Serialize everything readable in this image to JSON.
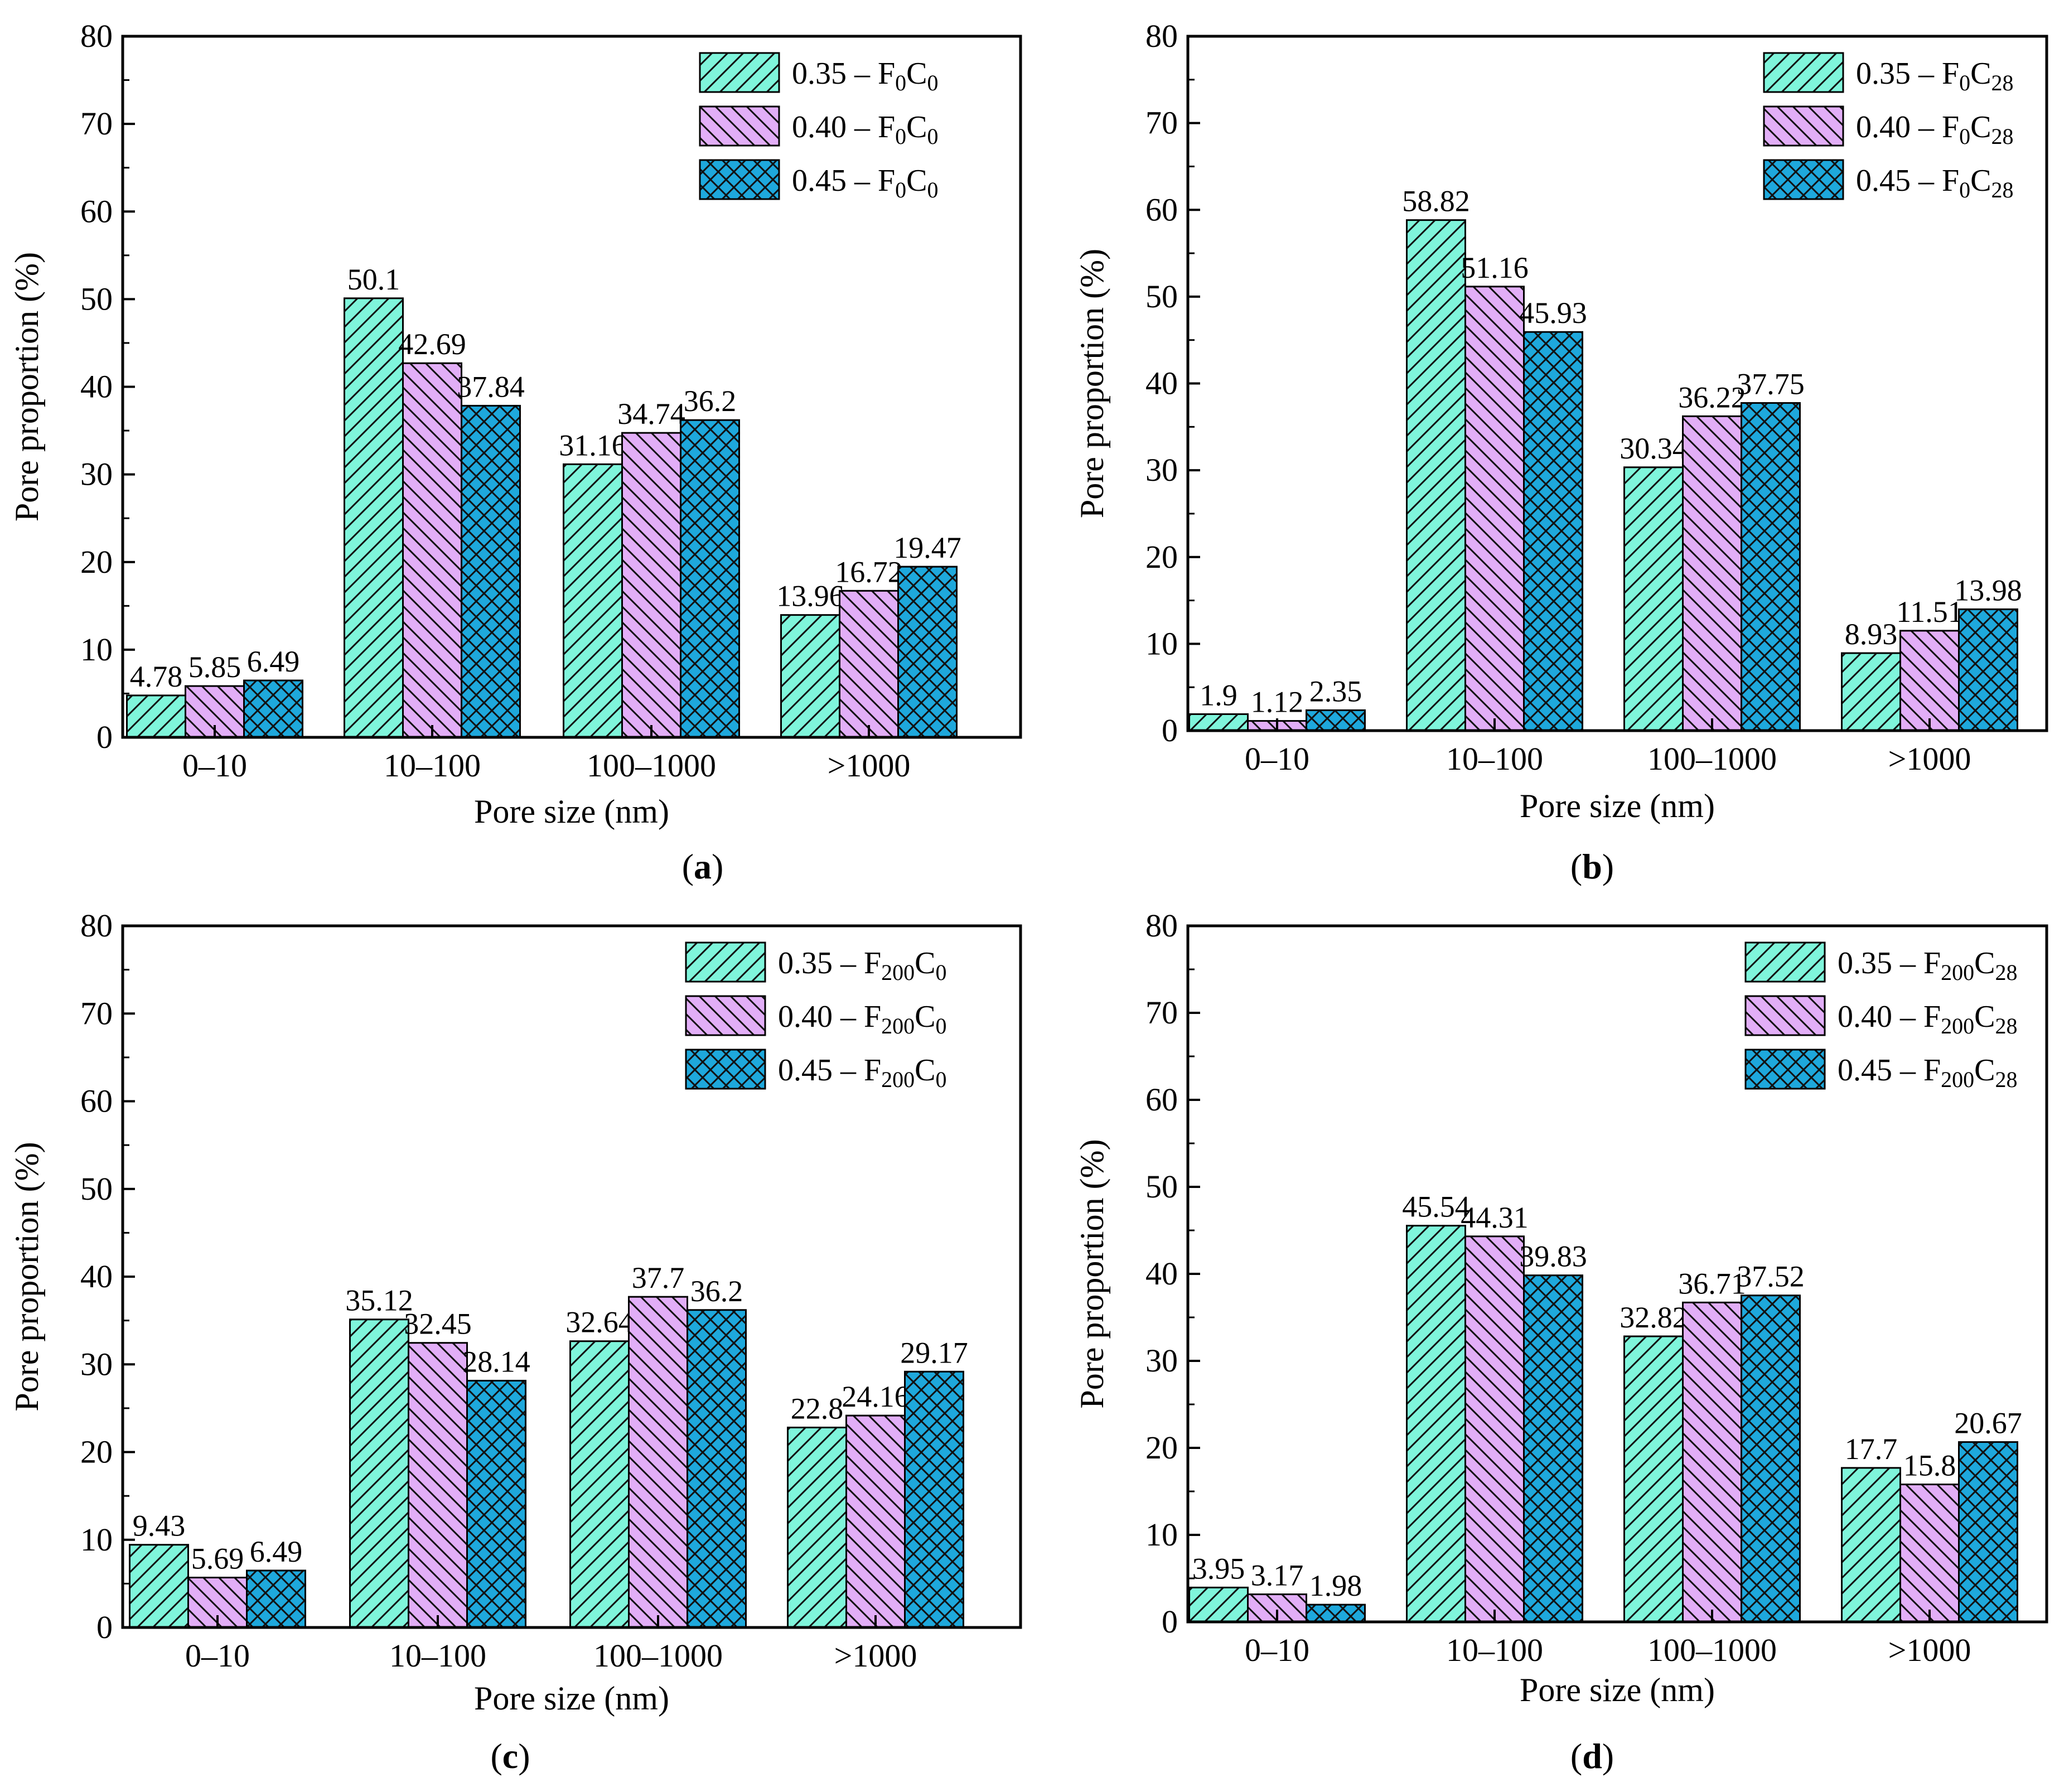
{
  "figure": {
    "colors": {
      "0.35": "#7ff5db",
      "0.40": "#e2aef7",
      "0.45": "#1ea8dc"
    },
    "patterns": {
      "0.35": "hatch-forward-diagonal",
      "0.40": "hatch-backward-diagonal",
      "0.45": "hatch-crosshatch"
    }
  },
  "chart_data": [
    {
      "panel": "a",
      "panel_label": "(a)",
      "type": "bar",
      "xlabel": "Pore size (nm)",
      "ylabel": "Pore proportion (%)",
      "ylim": [
        0,
        80
      ],
      "yticks": [
        0,
        10,
        20,
        30,
        40,
        50,
        60,
        70,
        80
      ],
      "legend_position": "top-right",
      "categories": [
        "0–10",
        "10–100",
        "100–1000",
        ">1000"
      ],
      "series": [
        {
          "key": "0.35",
          "name": "0.35 – F0C0",
          "legend_prefix": "0.35 – F",
          "legend_sub1": "0",
          "legend_mid": "C",
          "legend_sub2": "0",
          "values": [
            4.78,
            50.1,
            31.16,
            13.96
          ]
        },
        {
          "key": "0.40",
          "name": "0.40 – F0C0",
          "legend_prefix": "0.40 – F",
          "legend_sub1": "0",
          "legend_mid": "C",
          "legend_sub2": "0",
          "values": [
            5.85,
            42.69,
            34.74,
            16.72
          ]
        },
        {
          "key": "0.45",
          "name": "0.45 – F0C0",
          "legend_prefix": "0.45 – F",
          "legend_sub1": "0",
          "legend_mid": "C",
          "legend_sub2": "0",
          "values": [
            6.49,
            37.84,
            36.2,
            19.47
          ]
        }
      ]
    },
    {
      "panel": "b",
      "panel_label": "(b)",
      "type": "bar",
      "xlabel": "Pore size (nm)",
      "ylabel": "Pore proportion (%)",
      "ylim": [
        0,
        80
      ],
      "yticks": [
        0,
        10,
        20,
        30,
        40,
        50,
        60,
        70,
        80
      ],
      "legend_position": "top-right",
      "categories": [
        "0–10",
        "10–100",
        "100–1000",
        ">1000"
      ],
      "series": [
        {
          "key": "0.35",
          "name": "0.35 – F0C28",
          "legend_prefix": "0.35 – F",
          "legend_sub1": "0",
          "legend_mid": "C",
          "legend_sub2": "28",
          "values": [
            1.9,
            58.82,
            30.34,
            8.93
          ]
        },
        {
          "key": "0.40",
          "name": "0.40 – F0C28",
          "legend_prefix": "0.40 – F",
          "legend_sub1": "0",
          "legend_mid": "C",
          "legend_sub2": "28",
          "values": [
            1.12,
            51.16,
            36.22,
            11.51
          ]
        },
        {
          "key": "0.45",
          "name": "0.45 – F0C28",
          "legend_prefix": "0.45 – F",
          "legend_sub1": "0",
          "legend_mid": "C",
          "legend_sub2": "28",
          "values": [
            2.35,
            45.93,
            37.75,
            13.98
          ]
        }
      ]
    },
    {
      "panel": "c",
      "panel_label": "(c)",
      "type": "bar",
      "xlabel": "Pore size (nm)",
      "ylabel": "Pore proportion (%)",
      "ylim": [
        0,
        80
      ],
      "yticks": [
        0,
        10,
        20,
        30,
        40,
        50,
        60,
        70,
        80
      ],
      "legend_position": "top-right",
      "categories": [
        "0–10",
        "10–100",
        "100–1000",
        ">1000"
      ],
      "series": [
        {
          "key": "0.35",
          "name": "0.35 – F200C0",
          "legend_prefix": "0.35 – F",
          "legend_sub1": "200",
          "legend_mid": "C",
          "legend_sub2": "0",
          "values": [
            9.43,
            35.12,
            32.64,
            22.8
          ]
        },
        {
          "key": "0.40",
          "name": "0.40 – F200C0",
          "legend_prefix": "0.40 – F",
          "legend_sub1": "200",
          "legend_mid": "C",
          "legend_sub2": "0",
          "values": [
            5.69,
            32.45,
            37.7,
            24.16
          ]
        },
        {
          "key": "0.45",
          "name": "0.45 – F200C0",
          "legend_prefix": "0.45 – F",
          "legend_sub1": "200",
          "legend_mid": "C",
          "legend_sub2": "0",
          "values": [
            6.49,
            28.14,
            36.2,
            29.17
          ]
        }
      ]
    },
    {
      "panel": "d",
      "panel_label": "(d)",
      "type": "bar",
      "xlabel": "Pore size (nm)",
      "ylabel": "Pore proportion (%)",
      "ylim": [
        0,
        80
      ],
      "yticks": [
        0,
        10,
        20,
        30,
        40,
        50,
        60,
        70,
        80
      ],
      "legend_position": "top-right",
      "categories": [
        "0–10",
        "10–100",
        "100–1000",
        ">1000"
      ],
      "series": [
        {
          "key": "0.35",
          "name": "0.35 – F200C28",
          "legend_prefix": "0.35 – F",
          "legend_sub1": "200",
          "legend_mid": "C",
          "legend_sub2": "28",
          "values": [
            3.95,
            45.54,
            32.82,
            17.7
          ]
        },
        {
          "key": "0.40",
          "name": "0.40 – F200C28",
          "legend_prefix": "0.40 – F",
          "legend_sub1": "200",
          "legend_mid": "C",
          "legend_sub2": "28",
          "values": [
            3.17,
            44.31,
            36.71,
            15.8
          ]
        },
        {
          "key": "0.45",
          "name": "0.45 – F200C28",
          "legend_prefix": "0.45 – F",
          "legend_sub1": "200",
          "legend_mid": "C",
          "legend_sub2": "28",
          "values": [
            1.98,
            39.83,
            37.52,
            20.67
          ]
        }
      ]
    }
  ]
}
